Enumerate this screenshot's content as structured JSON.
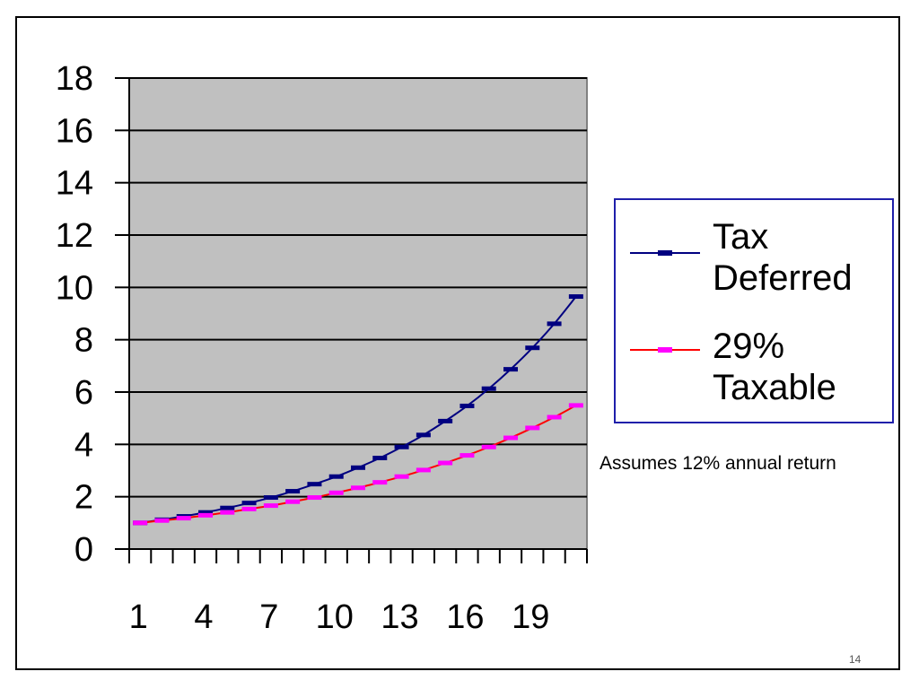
{
  "slide": {
    "note": "Assumes 12% annual return",
    "page_number": "14"
  },
  "colors": {
    "plot_bg": "#c0c0c0",
    "series_tax_deferred": "#000080",
    "series_taxable_line": "#ff0000",
    "series_taxable_marker": "#ff00ff",
    "legend_border": "#1f1faa"
  },
  "chart_data": {
    "type": "line",
    "title": "",
    "xlabel": "",
    "ylabel": "",
    "x": [
      1,
      2,
      3,
      4,
      5,
      6,
      7,
      8,
      9,
      10,
      11,
      12,
      13,
      14,
      15,
      16,
      17,
      18,
      19,
      20,
      21
    ],
    "x_tick_labels": [
      "1",
      "4",
      "7",
      "10",
      "13",
      "16",
      "19"
    ],
    "x_tick_label_positions": [
      1,
      4,
      7,
      10,
      13,
      16,
      19
    ],
    "ylim": [
      0,
      18
    ],
    "y_ticks": [
      0,
      2,
      4,
      6,
      8,
      10,
      12,
      14,
      16,
      18
    ],
    "grid": true,
    "legend_position": "right",
    "series": [
      {
        "name": "Tax Deferred",
        "color": "#000080",
        "marker_color": "#000080",
        "values": [
          1.0,
          1.12,
          1.25,
          1.4,
          1.57,
          1.76,
          1.97,
          2.21,
          2.48,
          2.77,
          3.11,
          3.48,
          3.9,
          4.36,
          4.89,
          5.47,
          6.13,
          6.87,
          7.69,
          8.61,
          9.65
        ]
      },
      {
        "name": "29% Taxable",
        "color": "#ff0000",
        "marker_color": "#ff00ff",
        "values": [
          1.0,
          1.09,
          1.18,
          1.29,
          1.4,
          1.53,
          1.66,
          1.81,
          1.97,
          2.15,
          2.34,
          2.55,
          2.77,
          3.02,
          3.29,
          3.58,
          3.9,
          4.25,
          4.63,
          5.04,
          5.49
        ]
      }
    ]
  }
}
